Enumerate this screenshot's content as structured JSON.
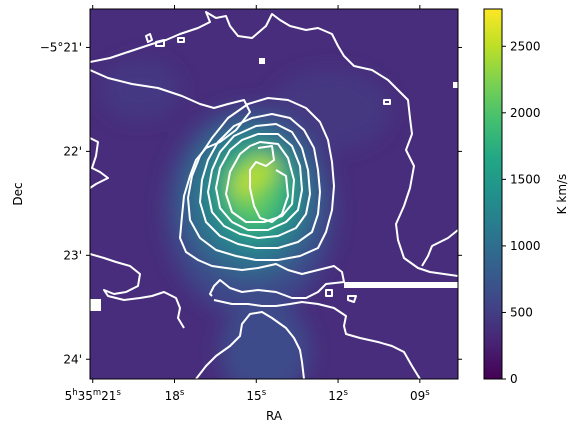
{
  "chart_data": {
    "type": "heatmap",
    "title": "",
    "xlabel": "RA",
    "ylabel": "Dec",
    "x_ticks": [
      {
        "label": "5h35m21s",
        "main": "5",
        "h": "h",
        "m_val": "35",
        "m": "m",
        "s_val": "21",
        "s": "s",
        "value": 21
      },
      {
        "label": "18s",
        "main": "18",
        "s": "s",
        "value": 18
      },
      {
        "label": "15s",
        "main": "15",
        "s": "s",
        "value": 15
      },
      {
        "label": "12s",
        "main": "12",
        "s": "s",
        "value": 12
      },
      {
        "label": "09s",
        "main": "09",
        "s": "s",
        "value": 9
      }
    ],
    "xlim": [
      21.1,
      7.6
    ],
    "y_ticks": [
      {
        "label": "−5°21'",
        "value": -21
      },
      {
        "label": "22'",
        "value": -22
      },
      {
        "label": "23'",
        "value": -23
      },
      {
        "label": "24'",
        "value": -24
      }
    ],
    "ylim": [
      -24.19,
      -20.63
    ],
    "colorbar": {
      "label": "K km/s",
      "range": [
        0,
        2780
      ],
      "ticks": [
        "0",
        "500",
        "1000",
        "1500",
        "2000",
        "2500"
      ],
      "tick_values": [
        0,
        500,
        1000,
        1500,
        2000,
        2500
      ],
      "colormap": "viridis"
    },
    "contour_color": "#ffffff",
    "peak_value": 2700,
    "background_value": 330
  }
}
